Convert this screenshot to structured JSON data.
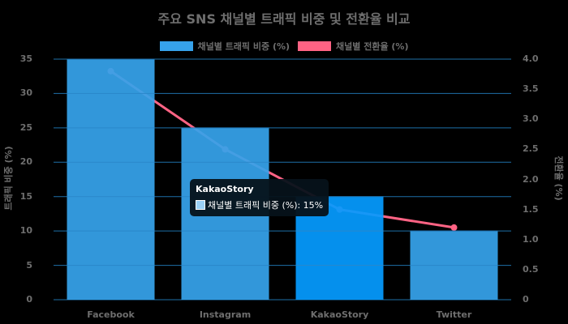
{
  "chart_data": {
    "type": "bar",
    "title": "주요 SNS 채널별 트래픽 비중 및 전환율 비교",
    "categories": [
      "Facebook",
      "Instagram",
      "KakaoStory",
      "Twitter"
    ],
    "series": [
      {
        "name": "채널별 트래픽 비중 (%)",
        "type": "bar",
        "axis": "left",
        "values": [
          35,
          25,
          15,
          10
        ],
        "color": "#36a2eb"
      },
      {
        "name": "채널별 전환율 (%)",
        "type": "line",
        "axis": "right",
        "values": [
          3.8,
          2.5,
          1.5,
          1.2
        ],
        "color": "#ff6384"
      }
    ],
    "ylabel": "트래픽 비중 (%)",
    "y2label": "전환율 (%)",
    "ylim": [
      0,
      35
    ],
    "y2lim": [
      0,
      4.0
    ],
    "yticks": [
      "0",
      "5",
      "10",
      "15",
      "20",
      "25",
      "30",
      "35"
    ],
    "y2ticks": [
      "0",
      "0.5",
      "1.0",
      "1.5",
      "2.0",
      "2.5",
      "3.0",
      "3.5",
      "4.0"
    ],
    "grid": true,
    "legend_position": "top"
  },
  "tooltip": {
    "title": "KakaoStory",
    "label": "채널별 트래픽 비중 (%): 15%"
  },
  "colors": {
    "bar": "#36a2eb",
    "bar_hover": "#059bff",
    "line": "#ff6384",
    "text": "#6e6e6e"
  }
}
